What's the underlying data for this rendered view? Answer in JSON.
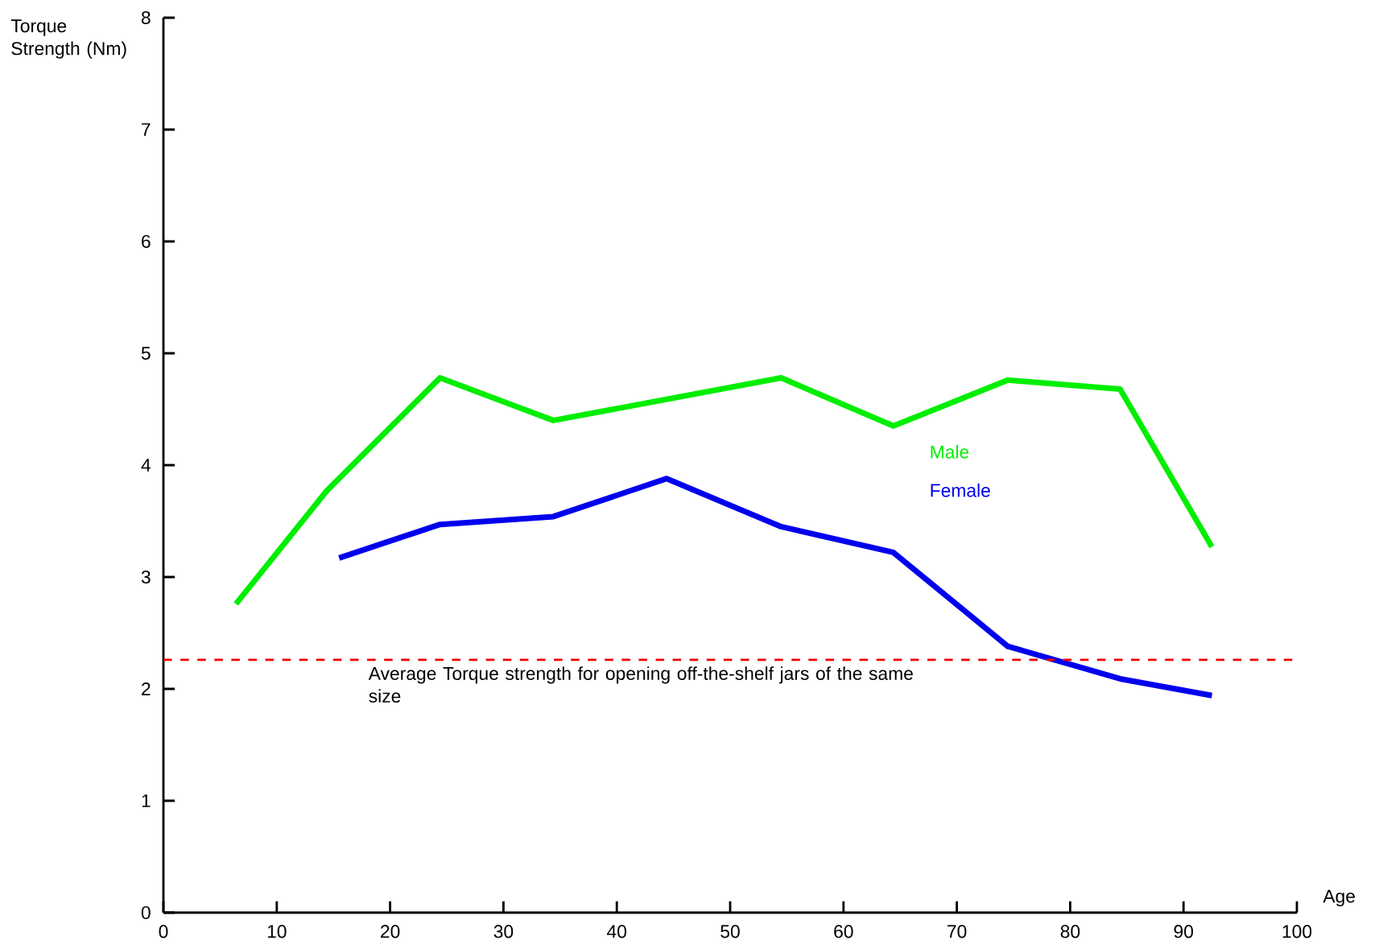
{
  "chart_data": {
    "type": "line",
    "xlabel": "Age",
    "ylabel": "Torque Strength (Nm)",
    "xlim": [
      0,
      100
    ],
    "xticks": [
      0,
      10,
      20,
      30,
      40,
      50,
      60,
      70,
      80,
      90,
      100
    ],
    "ylim": [
      0,
      8
    ],
    "yticks": [
      0,
      1,
      2,
      3,
      4,
      5,
      6,
      7,
      8
    ],
    "grid": false,
    "legend": false,
    "marker": "none",
    "line_style": "solid",
    "series": [
      {
        "name": "Male",
        "color": "#00ee00",
        "x": [
          6.4,
          14.4,
          24.4,
          34.4,
          54.5,
          64.4,
          74.5,
          84.4,
          92.5
        ],
        "values": [
          2.76,
          3.77,
          4.78,
          4.4,
          4.78,
          4.35,
          4.76,
          4.68,
          3.27
        ]
      },
      {
        "name": "Female",
        "color": "#0000ee",
        "x": [
          15.5,
          24.4,
          34.4,
          44.4,
          54.5,
          64.4,
          74.5,
          84.4,
          92.5
        ],
        "values": [
          3.17,
          3.47,
          3.54,
          3.88,
          3.45,
          3.22,
          2.38,
          2.09,
          1.94
        ]
      }
    ],
    "ref_lines": [
      {
        "axis": "y",
        "value": 2.26,
        "label": "Average Torque strength for opening off-the-shelf jars of the same size",
        "color": "#ee0000",
        "line_style": "dashed"
      }
    ]
  }
}
